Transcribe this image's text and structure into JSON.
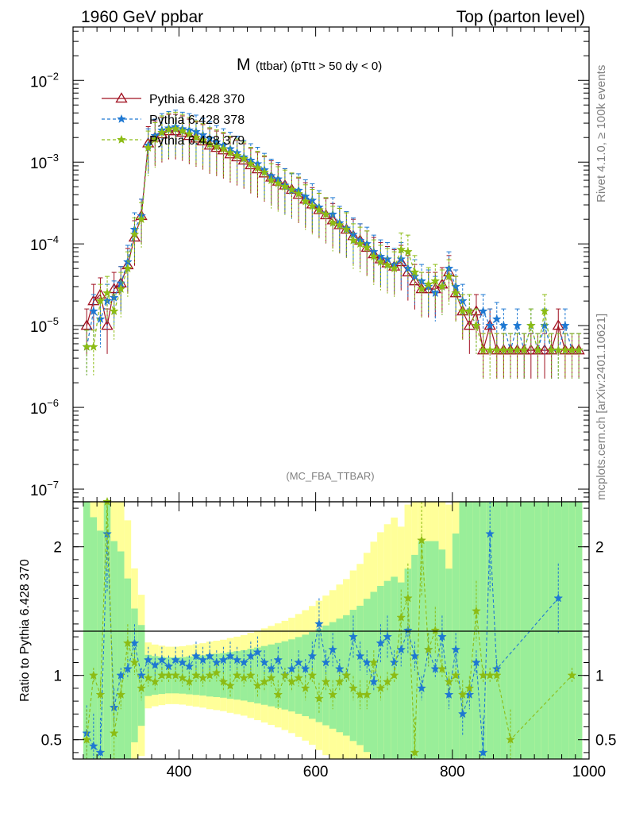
{
  "header": {
    "left": "1960 GeV ppbar",
    "right": "Top (parton level)"
  },
  "side": {
    "rivet": "Rivet 4.1.0, ≥ 100k events",
    "mcplots": "mcplots.cern.ch [arXiv:2401.10621]"
  },
  "chart_data": {
    "type": "line",
    "title_main": "M",
    "title_sub": "(ttbar) (pTtt > 50 dy < 0)",
    "analysis_label": "(MC_FBA_TTBAR)",
    "xlabel": "",
    "ylabel_top": "",
    "ylabel_ratio": "Ratio to Pythia 6.428 370",
    "xlim": [
      245,
      1000
    ],
    "ylim_top": [
      7e-08,
      0.045
    ],
    "ylog_top": true,
    "ylim_ratio": [
      0.35,
      2.35
    ],
    "x_ticks": [
      {
        "value": 400,
        "label": "400"
      },
      {
        "value": 600,
        "label": "600"
      },
      {
        "value": 800,
        "label": "800"
      },
      {
        "value": 1000,
        "label": "1000"
      }
    ],
    "y_ticks_top": [
      {
        "value": 1e-07,
        "base": "10",
        "exp": "−7"
      },
      {
        "value": 1e-06,
        "base": "10",
        "exp": "−6"
      },
      {
        "value": 1e-05,
        "base": "10",
        "exp": "−5"
      },
      {
        "value": 0.0001,
        "base": "10",
        "exp": "−4"
      },
      {
        "value": 0.001,
        "base": "10",
        "exp": "−3"
      },
      {
        "value": 0.01,
        "base": "10",
        "exp": "−2"
      }
    ],
    "y_ticks_ratio": [
      {
        "value": 0.5,
        "label": "0.5"
      },
      {
        "value": 1,
        "label": "1"
      },
      {
        "value": 2,
        "label": "2"
      }
    ],
    "legend_position": "top-left",
    "series": [
      {
        "name": "Pythia 6.428 370",
        "color": "#a01020",
        "marker": "triangle",
        "dash": "solid",
        "x": [
          265,
          275,
          285,
          295,
          305,
          315,
          325,
          335,
          345,
          355,
          365,
          375,
          385,
          395,
          405,
          415,
          425,
          435,
          445,
          455,
          465,
          475,
          485,
          495,
          505,
          515,
          525,
          535,
          545,
          555,
          565,
          575,
          585,
          595,
          605,
          615,
          625,
          635,
          645,
          655,
          665,
          675,
          685,
          695,
          705,
          715,
          725,
          735,
          745,
          755,
          765,
          775,
          785,
          795,
          805,
          815,
          825,
          835,
          845,
          855,
          865,
          875,
          885,
          895,
          905,
          915,
          925,
          935,
          945,
          955,
          965,
          975,
          985
        ],
        "y": [
          1e-05,
          2e-05,
          2.4e-05,
          1e-05,
          2.8e-05,
          3.3e-05,
          5.5e-05,
          0.00012,
          0.00022,
          0.0017,
          0.002,
          0.0022,
          0.0024,
          0.0024,
          0.0023,
          0.0021,
          0.00195,
          0.0018,
          0.0016,
          0.0015,
          0.0014,
          0.00125,
          0.00115,
          0.00105,
          0.00092,
          0.00082,
          0.00073,
          0.00065,
          0.00058,
          0.00052,
          0.00046,
          0.0004,
          0.00035,
          0.000305,
          0.00026,
          0.000225,
          0.000195,
          0.00017,
          0.00015,
          0.000125,
          0.00011,
          9e-05,
          7.5e-05,
          6.5e-05,
          5.8e-05,
          5.3e-05,
          6e-05,
          4.5e-05,
          3.5e-05,
          2.8e-05,
          2.8e-05,
          2.8e-05,
          3.2e-05,
          4.5e-05,
          2.5e-05,
          1.5e-05,
          1e-05,
          1.5e-05,
          5e-06,
          1e-05,
          5e-06,
          5e-06,
          5e-06,
          5e-06,
          5e-06,
          5e-06,
          5e-06,
          5e-06,
          5e-06,
          1e-05,
          5e-06,
          5e-06,
          5e-06
        ],
        "ratio": [],
        "ratio_x": []
      },
      {
        "name": "Pythia 6.428 378",
        "color": "#1e78d2",
        "marker": "star",
        "dash": "dashed",
        "x": [
          265,
          275,
          285,
          295,
          305,
          315,
          325,
          335,
          345,
          355,
          365,
          375,
          385,
          395,
          405,
          415,
          425,
          435,
          445,
          455,
          465,
          475,
          485,
          495,
          505,
          515,
          525,
          535,
          545,
          555,
          565,
          575,
          585,
          595,
          605,
          615,
          625,
          635,
          645,
          655,
          665,
          675,
          685,
          695,
          705,
          715,
          725,
          735,
          745,
          755,
          765,
          775,
          785,
          795,
          805,
          815,
          825,
          835,
          845,
          855,
          865,
          875,
          885,
          895,
          905,
          915,
          925,
          935,
          945,
          955,
          965,
          975,
          985
        ],
        "y": [
          5.5e-06,
          1.5e-05,
          1.2e-05,
          2e-05,
          2.2e-05,
          3.3e-05,
          6e-05,
          0.00015,
          0.00022,
          0.0016,
          0.0021,
          0.00245,
          0.0026,
          0.0027,
          0.00255,
          0.00245,
          0.00235,
          0.00215,
          0.00195,
          0.00175,
          0.0016,
          0.00145,
          0.0013,
          0.00115,
          0.00105,
          0.00095,
          0.0008,
          0.00068,
          0.00062,
          0.00052,
          0.00045,
          0.00045,
          0.00038,
          0.00034,
          0.00028,
          0.00023,
          0.00023,
          0.00018,
          0.000155,
          0.00013,
          0.00011,
          0.0001,
          8e-05,
          7e-05,
          6.5e-05,
          5.5e-05,
          6.5e-05,
          5e-05,
          4e-05,
          3.5e-05,
          3e-05,
          2.5e-05,
          3e-05,
          5e-05,
          3e-05,
          2e-05,
          1.5e-05,
          1e-05,
          1.5e-05,
          1e-05,
          1.2e-05,
          1e-05,
          5e-06,
          1e-05,
          5e-06,
          1e-05,
          5e-06,
          1e-05,
          5e-06,
          5e-06,
          1e-05,
          5e-06,
          5e-06
        ],
        "ratio_x": [
          265,
          275,
          285,
          295,
          305,
          315,
          325,
          335,
          345,
          355,
          365,
          375,
          385,
          395,
          405,
          415,
          425,
          435,
          445,
          455,
          465,
          475,
          485,
          495,
          505,
          515,
          525,
          535,
          545,
          555,
          565,
          575,
          585,
          595,
          605,
          615,
          625,
          635,
          645,
          655,
          665,
          675,
          685,
          695,
          705,
          715,
          725,
          735,
          745,
          755,
          765,
          775,
          785,
          795,
          805,
          815,
          825,
          835,
          845,
          855,
          865,
          955
        ],
        "ratio": [
          0.55,
          0.45,
          0.4,
          2.1,
          0.75,
          1.0,
          1.05,
          1.25,
          1.0,
          1.12,
          1.08,
          1.12,
          1.07,
          1.12,
          1.1,
          1.07,
          1.15,
          1.12,
          1.15,
          1.1,
          1.12,
          1.15,
          1.12,
          1.1,
          1.15,
          1.18,
          1.1,
          1.05,
          1.12,
          1.0,
          1.05,
          1.1,
          1.05,
          1.15,
          1.4,
          1.1,
          1.2,
          1.05,
          1.0,
          1.3,
          1.15,
          1.1,
          0.95,
          1.25,
          1.3,
          1.1,
          1.2,
          1.35,
          1.15,
          0.9,
          1.2,
          1.05,
          1.3,
          0.85,
          1.2,
          0.7,
          0.85,
          1.1,
          0.4,
          2.1,
          1.05,
          1.6
        ]
      },
      {
        "name": "Pythia 6.428 379",
        "color": "#8cbc14",
        "marker": "star",
        "dash": "dashed",
        "x": [
          265,
          275,
          285,
          295,
          305,
          315,
          325,
          335,
          345,
          355,
          365,
          375,
          385,
          395,
          405,
          415,
          425,
          435,
          445,
          455,
          465,
          475,
          485,
          495,
          505,
          515,
          525,
          535,
          545,
          555,
          565,
          575,
          585,
          595,
          605,
          615,
          625,
          635,
          645,
          655,
          665,
          675,
          685,
          695,
          705,
          715,
          725,
          735,
          745,
          755,
          765,
          775,
          785,
          795,
          805,
          815,
          825,
          835,
          845,
          855,
          865,
          875,
          885,
          895,
          905,
          915,
          925,
          935,
          945,
          955,
          965,
          975,
          985
        ],
        "y": [
          5.5e-06,
          5.5e-06,
          2e-05,
          2.5e-05,
          1.5e-05,
          2.8e-05,
          5e-05,
          0.00013,
          0.0002,
          0.0015,
          0.0019,
          0.0023,
          0.0025,
          0.00255,
          0.0024,
          0.0022,
          0.002,
          0.00185,
          0.00165,
          0.00155,
          0.00145,
          0.0013,
          0.0012,
          0.0011,
          0.00095,
          0.00085,
          0.00075,
          0.0006,
          0.00055,
          0.0005,
          0.00046,
          0.00041,
          0.00033,
          0.00029,
          0.00026,
          0.00023,
          0.00018,
          0.00017,
          0.00015,
          0.00011,
          0.0001,
          9e-05,
          7e-05,
          6e-05,
          5.5e-05,
          5e-05,
          8.5e-05,
          8e-05,
          4.5e-05,
          2.8e-05,
          3.2e-05,
          3.5e-05,
          3e-05,
          4e-05,
          2.5e-05,
          1.5e-05,
          1.5e-05,
          1e-05,
          5e-06,
          5e-06,
          5e-06,
          5e-06,
          5e-06,
          5e-06,
          5e-06,
          1e-05,
          5e-06,
          1.5e-05,
          5e-06,
          5e-06,
          5e-06,
          5e-06,
          5e-06
        ],
        "ratio_x": [
          265,
          275,
          285,
          295,
          305,
          315,
          325,
          335,
          345,
          355,
          365,
          375,
          385,
          395,
          405,
          415,
          425,
          435,
          445,
          455,
          465,
          475,
          485,
          495,
          505,
          515,
          525,
          535,
          545,
          555,
          565,
          575,
          585,
          595,
          605,
          615,
          625,
          635,
          645,
          655,
          665,
          675,
          685,
          695,
          705,
          715,
          725,
          735,
          745,
          755,
          765,
          775,
          785,
          795,
          805,
          815,
          825,
          835,
          845,
          855,
          865,
          885,
          975
        ],
        "ratio": [
          0.5,
          1.0,
          0.85,
          2.35,
          0.55,
          0.85,
          1.25,
          1.1,
          0.9,
          0.98,
          0.95,
          1.0,
          1.0,
          1.0,
          0.98,
          0.95,
          1.0,
          0.98,
          1.0,
          1.02,
          0.95,
          0.92,
          1.0,
          0.98,
          1.0,
          0.92,
          0.95,
          0.98,
          0.85,
          1.0,
          0.95,
          0.98,
          0.9,
          1.0,
          0.82,
          0.95,
          0.85,
          0.95,
          1.0,
          0.9,
          0.85,
          0.85,
          1.1,
          0.9,
          0.95,
          1.0,
          1.45,
          1.6,
          0.4,
          2.05,
          1.2,
          1.35,
          1.05,
          0.95,
          1.0,
          0.85,
          0.9,
          1.5,
          1.0,
          1.0,
          1.0,
          0.5,
          1.0
        ]
      }
    ]
  }
}
